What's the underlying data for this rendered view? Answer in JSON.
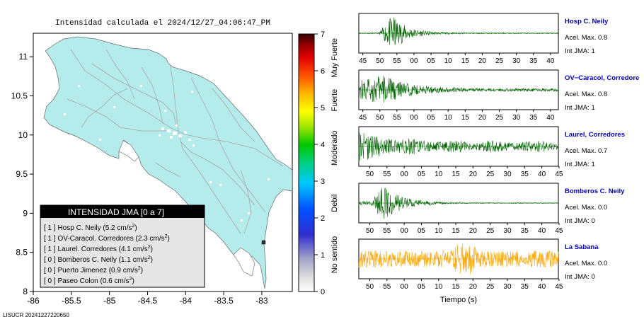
{
  "map": {
    "title": "Intensidad calculada el 2024/12/27_04:06:47_PM",
    "x_ticks": [
      "-86",
      "-85.5",
      "-85",
      "-84.5",
      "-84",
      "-83.5",
      "-83"
    ],
    "y_ticks": [
      "11",
      "10.5",
      "10",
      "9.5",
      "9",
      "8.5",
      "8"
    ],
    "land_color": "#b4ecec",
    "footer": "LISUCR 20241227220650"
  },
  "colorbar": {
    "ticks": [
      "7",
      "6",
      "5",
      "4",
      "3",
      "2",
      "1",
      "0"
    ],
    "labels": [
      "Muy Fuerte",
      "Fuerte",
      "Moderado",
      "Debil",
      "No sentido"
    ]
  },
  "legend": {
    "title": "INTENSIDAD JMA [0 a 7]",
    "entries": [
      {
        "jma": "[ 1 ]",
        "name": "Hosp C. Neily",
        "value": "(5.2 cm/s",
        "sup": "2",
        "close": ")"
      },
      {
        "jma": "[ 1 ]",
        "name": "OV-Caracol. Corredores",
        "value": "(2.3 cm/s",
        "sup": "2",
        "close": ")"
      },
      {
        "jma": "[ 1 ]",
        "name": "Laurel. Corredores",
        "value": "(4.1 cm/s",
        "sup": "2",
        "close": ")"
      },
      {
        "jma": "[ 0 ]",
        "name": "Bomberos C. Neily",
        "value": "(1.1 cm/s",
        "sup": "2",
        "close": ")"
      },
      {
        "jma": "[ 0 ]",
        "name": "Puerto Jimenez",
        "value": "(0.9 cm/s",
        "sup": "2",
        "close": ")"
      },
      {
        "jma": "[ 0 ]",
        "name": "Paseo Colon",
        "value": "(0.6 cm/s",
        "sup": "2",
        "close": ")"
      }
    ]
  },
  "chart_data": [
    {
      "type": "map",
      "title": "Intensidad calculada el 2024/12/27_04:06:47_PM",
      "xlim": [
        -86,
        -82.6
      ],
      "ylim": [
        8,
        11.3
      ],
      "stations_marked": [
        {
          "lon": -82.93,
          "lat": 8.54
        }
      ]
    },
    {
      "type": "line",
      "name": "Hosp C. Neily",
      "amplitude": 0.8,
      "x_ticks": [
        "45",
        "50",
        "55",
        "00",
        "05",
        "10",
        "15",
        "20",
        "25",
        "30",
        "35",
        "40"
      ],
      "ylim": [
        -1,
        1
      ]
    },
    {
      "type": "line",
      "name": "OV-Caracol, Corredores",
      "amplitude": 0.8,
      "x_ticks": [
        "45",
        "50",
        "55",
        "00",
        "05",
        "10",
        "15",
        "20",
        "25",
        "30",
        "35",
        "40"
      ],
      "ylim": [
        -1,
        1
      ]
    },
    {
      "type": "line",
      "name": "Laurel, Corredores",
      "amplitude": 0.7,
      "x_ticks": [
        "50",
        "55",
        "00",
        "05",
        "10",
        "15",
        "20",
        "25",
        "30",
        "35",
        "40",
        "45"
      ],
      "ylim": [
        -1,
        1
      ]
    },
    {
      "type": "line",
      "name": "Bomberos C. Neily",
      "amplitude": 0.0,
      "x_ticks": [
        "50",
        "55",
        "00",
        "05",
        "10",
        "15",
        "20",
        "25",
        "30",
        "35",
        "40",
        "45"
      ],
      "ylim": [
        -1,
        1
      ]
    },
    {
      "type": "line",
      "name": "La Sabana",
      "amplitude": 0.0,
      "x_ticks": [
        "50",
        "55",
        "00",
        "05",
        "10",
        "15",
        "20",
        "25",
        "30",
        "35",
        "40",
        "45"
      ],
      "ylim": [
        -1,
        1
      ]
    }
  ],
  "panels": [
    {
      "name": "Hosp C. Neily",
      "acel": "Acel. Max. 0.8",
      "jma": "Int JMA: 1",
      "color": "#006400",
      "env": "hosp"
    },
    {
      "name": "OV−Caracol, Corredore",
      "acel": "Acel. Max. 0.8",
      "jma": "Int JMA: 1",
      "color": "#006400",
      "env": "ov"
    },
    {
      "name": "Laurel, Corredores",
      "acel": "Acel. Max. 0.7",
      "jma": "Int JMA: 1",
      "color": "#006400",
      "env": "laurel"
    },
    {
      "name": "Bomberos C. Neily",
      "acel": "Acel. Max. 0.0",
      "jma": "Int JMA: 0",
      "color": "#006400",
      "env": "bomb"
    },
    {
      "name": "La Sabana",
      "acel": "Acel. Max. 0.0",
      "jma": "Int JMA: 0",
      "color": "#ffa500",
      "env": "sabana"
    }
  ],
  "time_axis_label": "Tiempo (s)",
  "name_color": "#0000cc"
}
